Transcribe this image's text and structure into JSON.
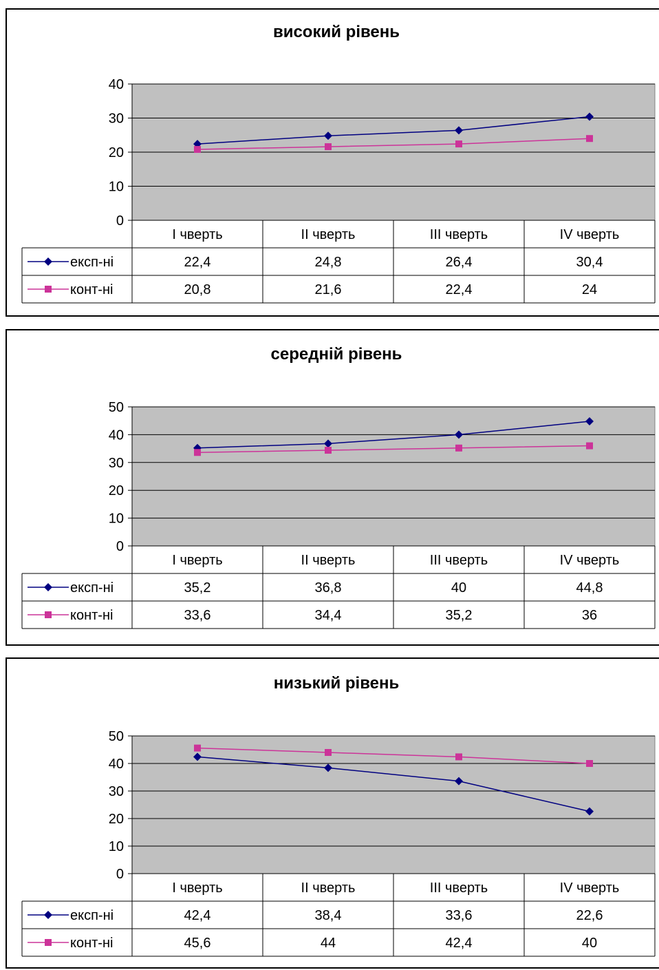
{
  "chart_data": [
    {
      "type": "line",
      "title": "високий рівень",
      "categories": [
        "I чверть",
        "II чверть",
        "III чверть",
        "IV чверть"
      ],
      "ylim": [
        0,
        40
      ],
      "yticks": [
        0,
        10,
        20,
        30,
        40
      ],
      "grid": true,
      "plot_background": "#c0c0c0",
      "legend": "data-table",
      "series": [
        {
          "name": "експ-ні",
          "values": [
            22.4,
            24.8,
            26.4,
            30.4
          ],
          "labels": [
            "22,4",
            "24,8",
            "26,4",
            "30,4"
          ],
          "color": "#000080",
          "marker": "diamond"
        },
        {
          "name": "конт-ні",
          "values": [
            20.8,
            21.6,
            22.4,
            24
          ],
          "labels": [
            "20,8",
            "21,6",
            "22,4",
            "24"
          ],
          "color": "#cc3399",
          "marker": "square"
        }
      ]
    },
    {
      "type": "line",
      "title": "середній рівень",
      "categories": [
        "I чверть",
        "II чверть",
        "III чверть",
        "IV чверть"
      ],
      "ylim": [
        0,
        50
      ],
      "yticks": [
        0,
        10,
        20,
        30,
        40,
        50
      ],
      "grid": true,
      "plot_background": "#c0c0c0",
      "legend": "data-table",
      "series": [
        {
          "name": "експ-ні",
          "values": [
            35.2,
            36.8,
            40,
            44.8
          ],
          "labels": [
            "35,2",
            "36,8",
            "40",
            "44,8"
          ],
          "color": "#000080",
          "marker": "diamond"
        },
        {
          "name": "конт-ні",
          "values": [
            33.6,
            34.4,
            35.2,
            36
          ],
          "labels": [
            "33,6",
            "34,4",
            "35,2",
            "36"
          ],
          "color": "#cc3399",
          "marker": "square"
        }
      ]
    },
    {
      "type": "line",
      "title": "низький рівень",
      "categories": [
        "I чверть",
        "II чверть",
        "III чверть",
        "IV чверть"
      ],
      "ylim": [
        0,
        50
      ],
      "yticks": [
        0,
        10,
        20,
        30,
        40,
        50
      ],
      "grid": true,
      "plot_background": "#c0c0c0",
      "legend": "data-table",
      "series": [
        {
          "name": "експ-ні",
          "values": [
            42.4,
            38.4,
            33.6,
            22.6
          ],
          "labels": [
            "42,4",
            "38,4",
            "33,6",
            "22,6"
          ],
          "color": "#000080",
          "marker": "diamond"
        },
        {
          "name": "конт-ні",
          "values": [
            45.6,
            44,
            42.4,
            40
          ],
          "labels": [
            "45,6",
            "44",
            "42,4",
            "40"
          ],
          "color": "#cc3399",
          "marker": "square"
        }
      ]
    }
  ]
}
